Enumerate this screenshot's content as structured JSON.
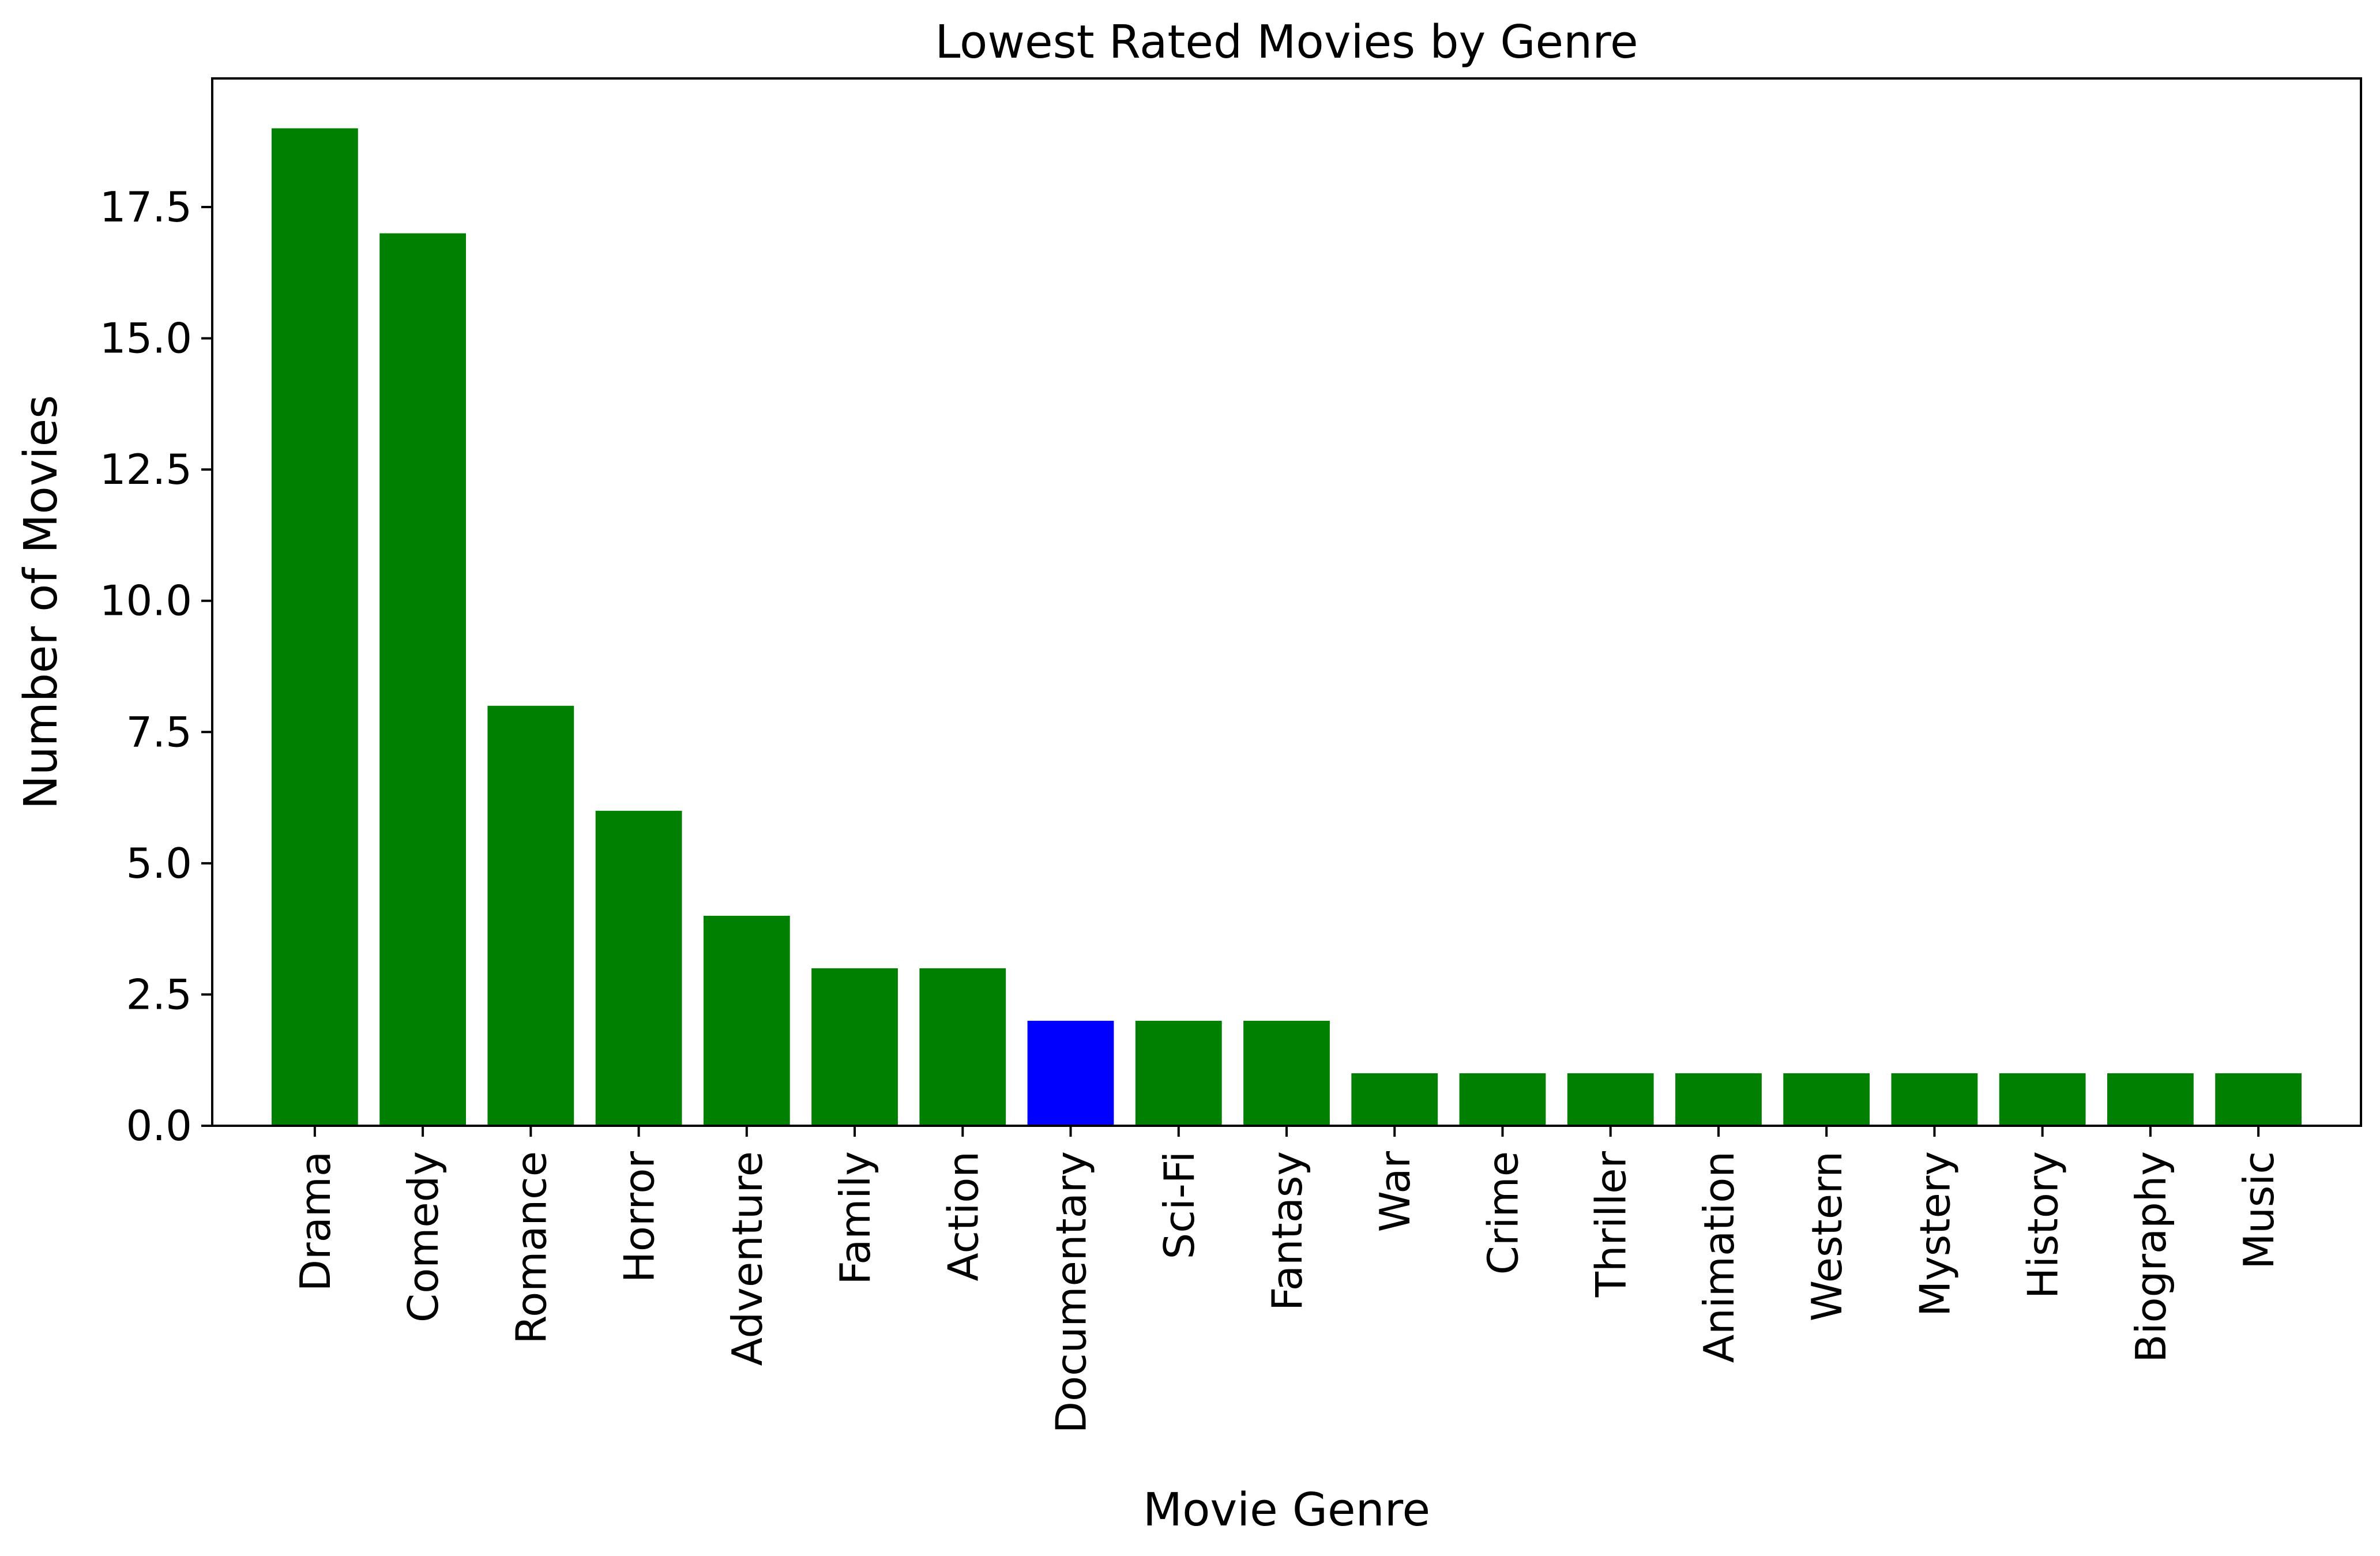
{
  "chart_data": {
    "type": "bar",
    "title": "Lowest Rated Movies by Genre",
    "xlabel": "Movie Genre",
    "ylabel": "Number of Movies",
    "categories": [
      "Drama",
      "Comedy",
      "Romance",
      "Horror",
      "Adventure",
      "Family",
      "Action",
      "Documentary",
      "Sci-Fi",
      "Fantasy",
      "War",
      "Crime",
      "Thriller",
      "Animation",
      "Western",
      "Mystery",
      "History",
      "Biography",
      "Music"
    ],
    "values": [
      19,
      17,
      8,
      6,
      4,
      3,
      3,
      2,
      2,
      2,
      1,
      1,
      1,
      1,
      1,
      1,
      1,
      1,
      1
    ],
    "bar_colors": [
      "#008000",
      "#008000",
      "#008000",
      "#008000",
      "#008000",
      "#008000",
      "#008000",
      "#0000ff",
      "#008000",
      "#008000",
      "#008000",
      "#008000",
      "#008000",
      "#008000",
      "#008000",
      "#008000",
      "#008000",
      "#008000",
      "#008000"
    ],
    "ylim": [
      0,
      19.95
    ],
    "yticks": [
      0.0,
      2.5,
      5.0,
      7.5,
      10.0,
      12.5,
      15.0,
      17.5
    ],
    "ytick_labels": [
      "0.0",
      "2.5",
      "5.0",
      "7.5",
      "10.0",
      "12.5",
      "15.0",
      "17.5"
    ],
    "grid": false,
    "legend": "none"
  }
}
